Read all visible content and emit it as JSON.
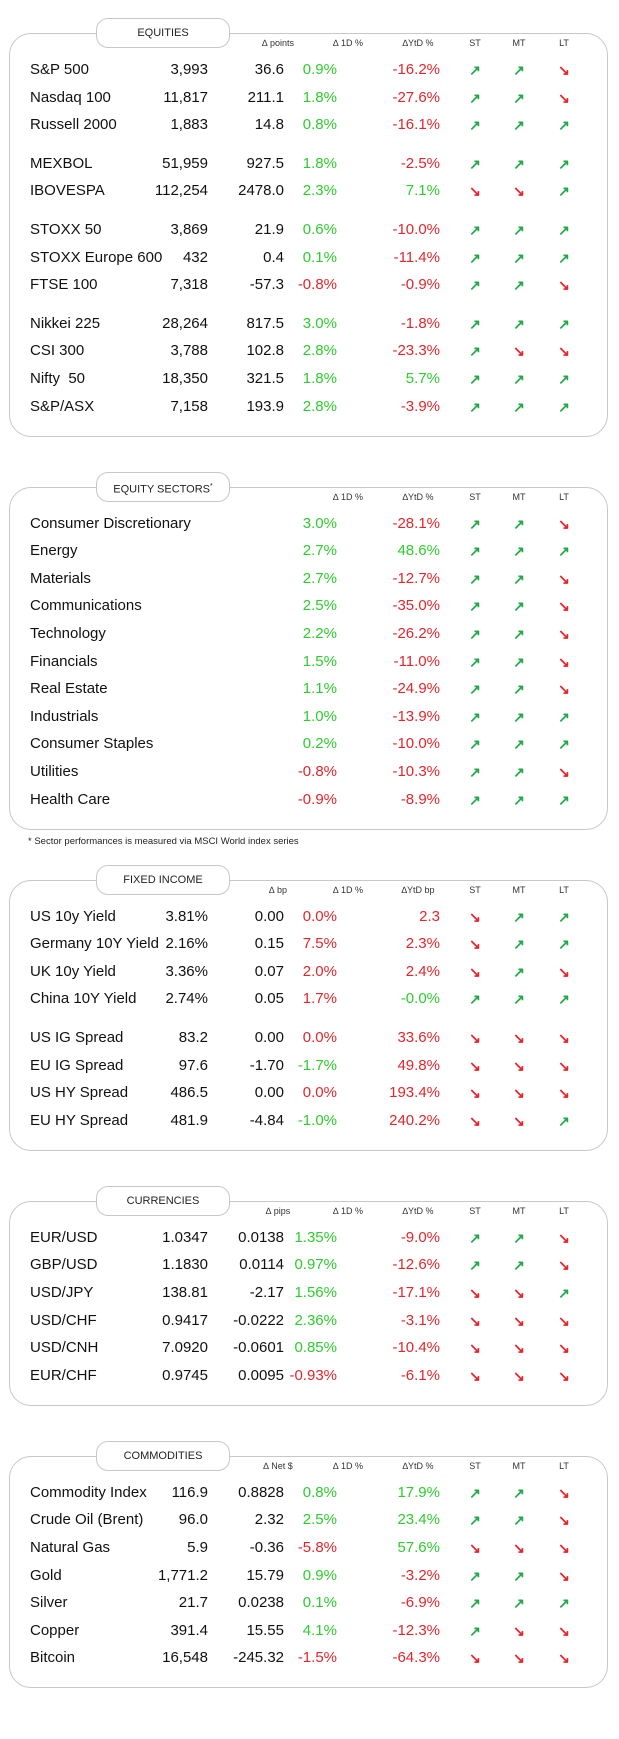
{
  "arrow_colors": {
    "↗": "#22a84a",
    "↘": "#e3262b"
  },
  "positive_color": "#2ecc2e",
  "negative_color": "#e3262b",
  "sections": [
    {
      "title": "EQUITIES",
      "headers": [
        null,
        null,
        "∆ points",
        "∆ 1D %",
        "∆YtD %",
        "ST",
        "MT",
        "LT"
      ],
      "groups": [
        [
          [
            "S&P 500",
            "3,993",
            "36.6",
            "0.9%",
            "-16.2%",
            "↗",
            "↗",
            "↘"
          ],
          [
            "Nasdaq 100",
            "11,817",
            "211.1",
            "1.8%",
            "-27.6%",
            "↗",
            "↗",
            "↘"
          ],
          [
            "Russell 2000",
            "1,883",
            "14.8",
            "0.8%",
            "-16.1%",
            "↗",
            "↗",
            "↗"
          ]
        ],
        [
          [
            "MEXBOL",
            "51,959",
            "927.5",
            "1.8%",
            "-2.5%",
            "↗",
            "↗",
            "↗"
          ],
          [
            "IBOVESPA",
            "112,254",
            "2478.0",
            "2.3%",
            "7.1%",
            "↘",
            "↘",
            "↗"
          ]
        ],
        [
          [
            "STOXX 50",
            "3,869",
            "21.9",
            "0.6%",
            "-10.0%",
            "↗",
            "↗",
            "↗"
          ],
          [
            "STOXX Europe 600",
            "432",
            "0.4",
            "0.1%",
            "-11.4%",
            "↗",
            "↗",
            "↗"
          ],
          [
            "FTSE 100",
            "7,318",
            "-57.3",
            "-0.8%",
            "-0.9%",
            "↗",
            "↗",
            "↘"
          ]
        ],
        [
          [
            "Nikkei 225",
            "28,264",
            "817.5",
            "3.0%",
            "-1.8%",
            "↗",
            "↗",
            "↗"
          ],
          [
            "CSI 300",
            "3,788",
            "102.8",
            "2.8%",
            "-23.3%",
            "↗",
            "↘",
            "↘"
          ],
          [
            "Nifty  50",
            "18,350",
            "321.5",
            "1.8%",
            "5.7%",
            "↗",
            "↗",
            "↗"
          ],
          [
            "S&P/ASX",
            "7,158",
            "193.9",
            "2.8%",
            "-3.9%",
            "↗",
            "↗",
            "↗"
          ]
        ]
      ]
    },
    {
      "title": "EQUITY SECTORS",
      "title_mark": "*",
      "headers": [
        null,
        "∆ 1D %",
        "∆YtD %",
        "ST",
        "MT",
        "LT"
      ],
      "groups": [
        [
          [
            "Consumer Discretionary",
            "3.0%",
            "-28.1%",
            "↗",
            "↗",
            "↘"
          ],
          [
            "Energy",
            "2.7%",
            "48.6%",
            "↗",
            "↗",
            "↗"
          ],
          [
            "Materials",
            "2.7%",
            "-12.7%",
            "↗",
            "↗",
            "↘"
          ],
          [
            "Communications",
            "2.5%",
            "-35.0%",
            "↗",
            "↗",
            "↘"
          ],
          [
            "Technology",
            "2.2%",
            "-26.2%",
            "↗",
            "↗",
            "↘"
          ],
          [
            "Financials",
            "1.5%",
            "-11.0%",
            "↗",
            "↗",
            "↘"
          ],
          [
            "Real Estate",
            "1.1%",
            "-24.9%",
            "↗",
            "↗",
            "↘"
          ],
          [
            "Industrials",
            "1.0%",
            "-13.9%",
            "↗",
            "↗",
            "↗"
          ],
          [
            "Consumer Staples",
            "0.2%",
            "-10.0%",
            "↗",
            "↗",
            "↗"
          ],
          [
            "Utilities",
            "-0.8%",
            "-10.3%",
            "↗",
            "↗",
            "↘"
          ],
          [
            "Health Care",
            "-0.9%",
            "-8.9%",
            "↗",
            "↗",
            "↗"
          ]
        ]
      ],
      "footnote": "* Sector performances is measured via MSCI World index series"
    },
    {
      "title": "FIXED INCOME",
      "color_scheme": "inverted",
      "headers": [
        null,
        null,
        "∆ bp",
        "∆ 1D %",
        "∆YtD bp",
        "ST",
        "MT",
        "LT"
      ],
      "groups": [
        [
          [
            "US 10y Yield",
            "3.81%",
            "0.00",
            "0.0%",
            "2.3",
            "↘",
            "↗",
            "↗"
          ],
          [
            "Germany 10Y Yield",
            "2.16%",
            "0.15",
            "7.5%",
            "2.3%",
            "↘",
            "↗",
            "↗"
          ],
          [
            "UK 10y Yield",
            "3.36%",
            "0.07",
            "2.0%",
            "2.4%",
            "↘",
            "↗",
            "↘"
          ],
          [
            "China 10Y Yield",
            "2.74%",
            "0.05",
            "1.7%",
            "-0.0%",
            "↗",
            "↗",
            "↗"
          ]
        ],
        [
          [
            "US IG Spread",
            "83.2",
            "0.00",
            "0.0%",
            "33.6%",
            "↘",
            "↘",
            "↘"
          ],
          [
            "EU IG Spread",
            "97.6",
            "-1.70",
            "-1.7%",
            "49.8%",
            "↘",
            "↘",
            "↘"
          ],
          [
            "US HY Spread",
            "486.5",
            "0.00",
            "0.0%",
            "193.4%",
            "↘",
            "↘",
            "↘"
          ],
          [
            "EU HY Spread",
            "481.9",
            "-4.84",
            "-1.0%",
            "240.2%",
            "↘",
            "↘",
            "↗"
          ]
        ]
      ]
    },
    {
      "title": "CURRENCIES",
      "headers": [
        null,
        null,
        "∆ pips",
        "∆ 1D %",
        "∆YtD %",
        "ST",
        "MT",
        "LT"
      ],
      "groups": [
        [
          [
            "EUR/USD",
            "1.0347",
            "0.0138",
            "1.35%",
            "-9.0%",
            "↗",
            "↗",
            "↘"
          ],
          [
            "GBP/USD",
            "1.1830",
            "0.0114",
            "0.97%",
            "-12.6%",
            "↗",
            "↗",
            "↘"
          ],
          [
            "USD/JPY",
            "138.81",
            "-2.17",
            "1.56%",
            "-17.1%",
            "↘",
            "↘",
            "↗"
          ],
          [
            "USD/CHF",
            "0.9417",
            "-0.0222",
            "2.36%",
            "-3.1%",
            "↘",
            "↘",
            "↘"
          ],
          [
            "USD/CNH",
            "7.0920",
            "-0.0601",
            "0.85%",
            "-10.4%",
            "↘",
            "↘",
            "↘"
          ],
          [
            "EUR/CHF",
            "0.9745",
            "0.0095",
            "-0.93%",
            "-6.1%",
            "↘",
            "↘",
            "↘"
          ]
        ]
      ]
    },
    {
      "title": "COMMODITIES",
      "headers": [
        null,
        null,
        "∆ Net $",
        "∆ 1D %",
        "∆YtD %",
        "ST",
        "MT",
        "LT"
      ],
      "groups": [
        [
          [
            "Commodity Index",
            "116.9",
            "0.8828",
            "0.8%",
            "17.9%",
            "↗",
            "↗",
            "↘"
          ],
          [
            "Crude Oil (Brent)",
            "96.0",
            "2.32",
            "2.5%",
            "23.4%",
            "↗",
            "↗",
            "↘"
          ],
          [
            "Natural Gas",
            "5.9",
            "-0.36",
            "-5.8%",
            "57.6%",
            "↘",
            "↘",
            "↘"
          ],
          [
            "Gold",
            "1,771.2",
            "15.79",
            "0.9%",
            "-3.2%",
            "↗",
            "↗",
            "↘"
          ],
          [
            "Silver",
            "21.7",
            "0.0238",
            "0.1%",
            "-6.9%",
            "↗",
            "↗",
            "↗"
          ],
          [
            "Copper",
            "391.4",
            "15.55",
            "4.1%",
            "-12.3%",
            "↗",
            "↘",
            "↘"
          ],
          [
            "Bitcoin",
            "16,548",
            "-245.32",
            "-1.5%",
            "-64.3%",
            "↘",
            "↘",
            "↘"
          ]
        ]
      ]
    }
  ]
}
